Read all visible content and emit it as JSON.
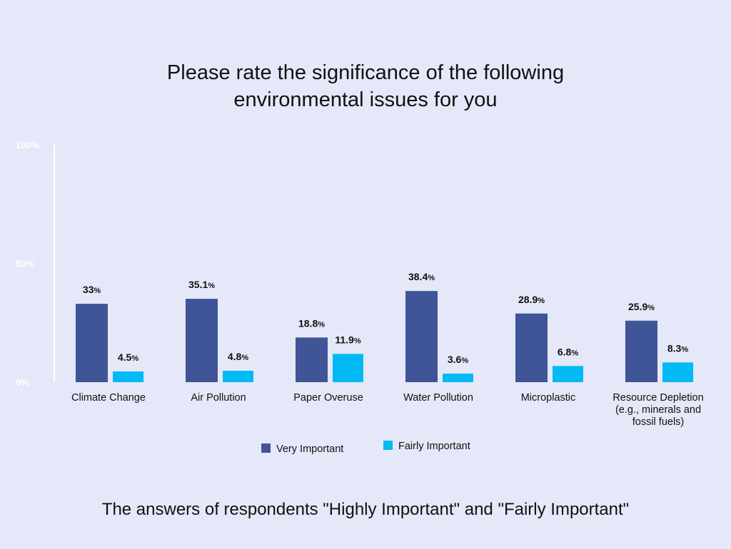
{
  "chart_data": {
    "type": "bar",
    "title": [
      "Please rate the significance of the following",
      "environmental issues for you"
    ],
    "footnote": "The answers of respondents \"Highly Important\" and \"Fairly Important\"",
    "categories": [
      [
        "Climate Change"
      ],
      [
        "Air Pollution"
      ],
      [
        "Paper Overuse"
      ],
      [
        "Water Pollution"
      ],
      [
        "Microplastic"
      ],
      [
        "Resource Depletion",
        "(e.g., minerals and",
        "fossil fuels)"
      ]
    ],
    "series": [
      {
        "name": "Very Important",
        "color": "#3f5597",
        "values": [
          33,
          35.1,
          18.8,
          38.4,
          28.9,
          25.9
        ]
      },
      {
        "name": "Fairly Important",
        "color": "#00b9f5",
        "values": [
          4.5,
          4.8,
          11.9,
          3.6,
          6.8,
          8.3
        ]
      }
    ],
    "value_unit": "%",
    "ylim": [
      0,
      100
    ],
    "yticks": [
      0,
      50,
      100
    ],
    "ytick_labels": [
      "0%",
      "50%",
      "100%"
    ],
    "grid": false,
    "legend_position": "bottom"
  }
}
